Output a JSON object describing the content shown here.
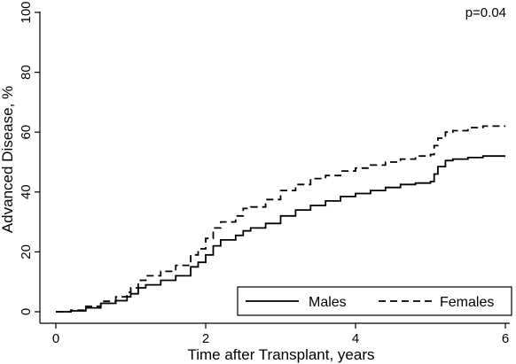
{
  "chart_data": {
    "type": "line",
    "xlabel": "Time after Transplant, years",
    "ylabel": "Advanced Disease, %",
    "xlim": [
      0,
      6
    ],
    "ylim": [
      0,
      100
    ],
    "x_ticks": [
      0,
      2,
      4,
      6
    ],
    "y_ticks": [
      0,
      20,
      40,
      60,
      80,
      100
    ],
    "grid": false,
    "annotation": "p=0.04",
    "legend_position": "bottom-right",
    "series": [
      {
        "name": "Males",
        "style": "solid",
        "color": "#000000",
        "x": [
          0,
          0.2,
          0.4,
          0.6,
          0.8,
          0.95,
          1.0,
          1.1,
          1.2,
          1.4,
          1.6,
          1.8,
          1.9,
          2.0,
          2.1,
          2.2,
          2.4,
          2.5,
          2.6,
          2.8,
          3.0,
          3.2,
          3.4,
          3.6,
          3.8,
          4.0,
          4.2,
          4.4,
          4.6,
          4.8,
          5.0,
          5.05,
          5.1,
          5.15,
          5.2,
          5.3,
          5.5,
          5.7,
          6.0
        ],
        "values": [
          0,
          0.3,
          1.3,
          2.8,
          3.7,
          5.0,
          6.0,
          8.0,
          9.0,
          10.5,
          12.0,
          15.0,
          16.5,
          19.0,
          22.0,
          24.0,
          25.5,
          27.0,
          28.0,
          29.5,
          32.0,
          34.0,
          35.5,
          37.0,
          38.5,
          39.5,
          40.5,
          41.5,
          42.5,
          43.0,
          43.5,
          46.0,
          48.5,
          48.5,
          50.5,
          51.0,
          51.5,
          52.0,
          52.0
        ]
      },
      {
        "name": "Females",
        "style": "dashed",
        "color": "#000000",
        "x": [
          0,
          0.2,
          0.4,
          0.6,
          0.8,
          0.95,
          1.0,
          1.1,
          1.2,
          1.4,
          1.6,
          1.8,
          1.9,
          2.0,
          2.1,
          2.2,
          2.4,
          2.5,
          2.6,
          2.8,
          3.0,
          3.2,
          3.4,
          3.6,
          3.8,
          4.0,
          4.2,
          4.4,
          4.6,
          4.8,
          5.0,
          5.05,
          5.1,
          5.15,
          5.2,
          5.3,
          5.5,
          5.7,
          6.0
        ],
        "values": [
          0,
          0.5,
          1.8,
          3.5,
          5.0,
          6.5,
          8.0,
          10.5,
          12.0,
          13.5,
          15.5,
          19.0,
          21.0,
          24.5,
          28.0,
          30.0,
          32.0,
          34.5,
          35.0,
          37.5,
          40.5,
          42.5,
          44.5,
          45.5,
          47.0,
          48.0,
          49.0,
          50.0,
          51.0,
          52.0,
          52.5,
          55.5,
          58.0,
          58.0,
          60.0,
          60.5,
          61.5,
          62.0,
          62.0
        ]
      }
    ]
  }
}
